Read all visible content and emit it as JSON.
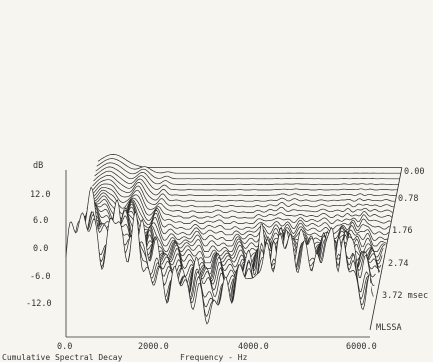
{
  "chart_data": {
    "type": "waterfall",
    "title": "Cumulative Spectral Decay",
    "xlabel": "Frequency - Hz",
    "ylabel": "dB",
    "x_ticks": [
      "0.0",
      "2000.0",
      "4000.0",
      "6000.0"
    ],
    "x_tick_values": [
      0,
      2000,
      4000,
      6000
    ],
    "xlim": [
      0,
      6000
    ],
    "y_ticks": [
      "12.0",
      "6.0",
      "0.0",
      "-6.0",
      "-12.0"
    ],
    "y_tick_values": [
      12,
      6,
      0,
      -6,
      -12
    ],
    "ylim": [
      -18,
      18
    ],
    "time_ticks": [
      "0.00",
      "0.78",
      "1.76",
      "2.74",
      "3.72 msec"
    ],
    "time_tick_values": [
      0.0,
      0.78,
      1.76,
      2.74,
      3.72
    ],
    "brand_label": "MLSSA",
    "slice_count": 30,
    "colors": {
      "ink": "#2a2a2a",
      "background": "#f7f5ef"
    }
  }
}
